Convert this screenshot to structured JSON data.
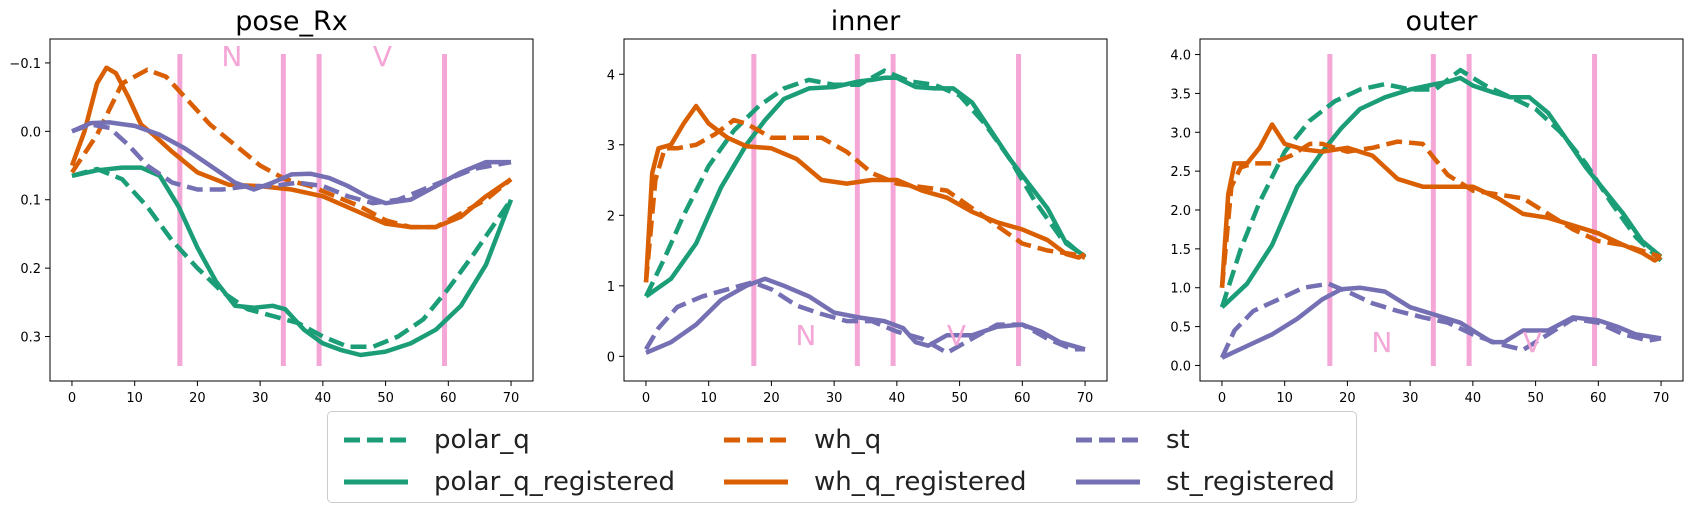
{
  "colors": {
    "polar": "#1b9e77",
    "wh": "#d95f02",
    "st": "#7570b3",
    "events": "#f4a6d7"
  },
  "legend": {
    "placement": "bottom-center",
    "entries": [
      {
        "label": "polar_q",
        "series": "polar_q",
        "style": "dashed"
      },
      {
        "label": "wh_q",
        "series": "wh_q",
        "style": "dashed"
      },
      {
        "label": "st",
        "series": "st",
        "style": "dashed"
      },
      {
        "label": "polar_q_registered",
        "series": "polar_q_registered",
        "style": "solid"
      },
      {
        "label": "wh_q_registered",
        "series": "wh_q_registered",
        "style": "solid"
      },
      {
        "label": "st_registered",
        "series": "st_registered",
        "style": "solid"
      }
    ]
  },
  "chart_data": [
    {
      "type": "line",
      "title": "pose_Rx",
      "xlabel": "",
      "ylabel": "",
      "xlim": [
        -3.5,
        73.5
      ],
      "ylim": [
        0.365,
        -0.135
      ],
      "y_inverted": true,
      "xticks": [
        0,
        10,
        20,
        30,
        40,
        50,
        60,
        70
      ],
      "yticks": [
        -0.1,
        0.0,
        0.1,
        0.2,
        0.3
      ],
      "ytick_labels": [
        "−0.1",
        "0.0",
        "0.1",
        "0.2",
        "0.3"
      ],
      "grid": false,
      "event_lines": [
        17.2,
        33.7,
        39.4,
        59.4
      ],
      "event_labels": [
        {
          "text": "N",
          "x": 25.5,
          "y": -0.11
        },
        {
          "text": "V",
          "x": 49.5,
          "y": -0.11
        }
      ],
      "series": [
        {
          "name": "polar_q",
          "color": "polar",
          "dashed": true,
          "x": [
            0,
            4,
            8,
            12,
            16,
            20,
            24,
            28,
            32,
            36,
            40,
            44,
            48,
            52,
            56,
            60,
            64,
            70
          ],
          "y": [
            0.065,
            0.055,
            0.07,
            0.11,
            0.16,
            0.2,
            0.235,
            0.26,
            0.27,
            0.28,
            0.3,
            0.315,
            0.315,
            0.3,
            0.275,
            0.23,
            0.18,
            0.1
          ]
        },
        {
          "name": "polar_q_registered",
          "color": "polar",
          "dashed": false,
          "x": [
            0,
            4,
            8,
            11,
            14,
            17,
            20,
            23,
            26,
            29,
            32,
            34,
            37,
            40,
            43,
            46,
            50,
            54,
            58,
            62,
            66,
            70
          ],
          "y": [
            0.065,
            0.057,
            0.053,
            0.053,
            0.065,
            0.11,
            0.17,
            0.22,
            0.255,
            0.258,
            0.255,
            0.26,
            0.29,
            0.31,
            0.32,
            0.327,
            0.322,
            0.31,
            0.29,
            0.255,
            0.195,
            0.1
          ]
        },
        {
          "name": "wh_q",
          "color": "wh",
          "dashed": true,
          "x": [
            0,
            4,
            8,
            12,
            15,
            18,
            22,
            26,
            30,
            34,
            38,
            42,
            46,
            50,
            54,
            58,
            62,
            66,
            70
          ],
          "y": [
            0.06,
            0.005,
            -0.07,
            -0.09,
            -0.08,
            -0.05,
            -0.01,
            0.02,
            0.05,
            0.07,
            0.08,
            0.095,
            0.11,
            0.13,
            0.14,
            0.14,
            0.12,
            0.1,
            0.07
          ]
        },
        {
          "name": "wh_q_registered",
          "color": "wh",
          "dashed": false,
          "x": [
            0,
            2,
            4,
            5.5,
            7,
            9,
            11,
            13,
            16,
            20,
            25,
            30,
            35,
            40,
            45,
            50,
            54,
            58,
            62,
            66,
            70
          ],
          "y": [
            0.05,
            0.0,
            -0.07,
            -0.093,
            -0.085,
            -0.05,
            -0.01,
            0.005,
            0.03,
            0.06,
            0.078,
            0.08,
            0.085,
            0.095,
            0.115,
            0.135,
            0.14,
            0.14,
            0.125,
            0.095,
            0.07
          ]
        },
        {
          "name": "st",
          "color": "st",
          "dashed": true,
          "x": [
            0,
            3,
            6,
            9,
            12,
            16,
            20,
            24,
            28,
            32,
            36,
            40,
            44,
            48,
            52,
            56,
            60,
            64,
            70
          ],
          "y": [
            0.0,
            -0.01,
            -0.005,
            0.02,
            0.05,
            0.075,
            0.085,
            0.085,
            0.08,
            0.08,
            0.075,
            0.08,
            0.095,
            0.105,
            0.1,
            0.085,
            0.07,
            0.055,
            0.045
          ]
        },
        {
          "name": "st_registered",
          "color": "st",
          "dashed": false,
          "x": [
            0,
            3,
            6,
            10,
            14,
            18,
            22,
            26,
            29,
            32,
            35,
            38,
            41,
            44,
            47,
            50,
            54,
            58,
            62,
            66,
            70
          ],
          "y": [
            0.0,
            -0.012,
            -0.013,
            -0.008,
            0.005,
            0.025,
            0.05,
            0.075,
            0.085,
            0.075,
            0.063,
            0.062,
            0.068,
            0.08,
            0.095,
            0.105,
            0.1,
            0.08,
            0.06,
            0.045,
            0.045
          ]
        }
      ]
    },
    {
      "type": "line",
      "title": "inner",
      "xlabel": "",
      "ylabel": "",
      "xlim": [
        -3.5,
        73.5
      ],
      "ylim": [
        -0.35,
        4.5
      ],
      "y_inverted": false,
      "xticks": [
        0,
        10,
        20,
        30,
        40,
        50,
        60,
        70
      ],
      "yticks": [
        0,
        1,
        2,
        3,
        4
      ],
      "ytick_labels": [
        "0",
        "1",
        "2",
        "3",
        "4"
      ],
      "grid": false,
      "event_lines": [
        17.2,
        33.7,
        39.4,
        59.4
      ],
      "event_labels": [
        {
          "text": "N",
          "x": 25.5,
          "y": 0.3
        },
        {
          "text": "V",
          "x": 49.5,
          "y": 0.3
        }
      ],
      "series": [
        {
          "name": "polar_q",
          "color": "polar",
          "dashed": true,
          "x": [
            0,
            3,
            6,
            10,
            14,
            18,
            22,
            26,
            30,
            34,
            38,
            42,
            46,
            50,
            54,
            58,
            62,
            66,
            70
          ],
          "y": [
            0.85,
            1.4,
            2.0,
            2.7,
            3.2,
            3.55,
            3.8,
            3.92,
            3.85,
            3.85,
            4.05,
            3.9,
            3.85,
            3.7,
            3.3,
            2.8,
            2.2,
            1.7,
            1.4
          ]
        },
        {
          "name": "polar_q_registered",
          "color": "polar",
          "dashed": false,
          "x": [
            0,
            4,
            8,
            12,
            16,
            19,
            22,
            26,
            30,
            34,
            36,
            38,
            40,
            43,
            46,
            49,
            52,
            55,
            58,
            61,
            64,
            67,
            70
          ],
          "y": [
            0.85,
            1.1,
            1.6,
            2.4,
            3.0,
            3.35,
            3.65,
            3.8,
            3.82,
            3.9,
            3.92,
            3.95,
            3.95,
            3.82,
            3.8,
            3.8,
            3.6,
            3.2,
            2.8,
            2.45,
            2.1,
            1.6,
            1.42
          ]
        },
        {
          "name": "wh_q",
          "color": "wh",
          "dashed": true,
          "x": [
            0,
            1.5,
            3,
            5,
            8,
            11,
            14,
            16,
            20,
            24,
            28,
            32,
            36,
            40,
            44,
            48,
            52,
            56,
            60,
            64,
            68,
            70
          ],
          "y": [
            1.05,
            2.5,
            2.95,
            2.95,
            3.0,
            3.15,
            3.35,
            3.3,
            3.1,
            3.1,
            3.1,
            2.9,
            2.6,
            2.45,
            2.4,
            2.35,
            2.1,
            1.85,
            1.6,
            1.5,
            1.45,
            1.4
          ]
        },
        {
          "name": "wh_q_registered",
          "color": "wh",
          "dashed": false,
          "x": [
            0,
            1,
            2,
            4,
            6,
            8,
            10,
            13,
            16,
            20,
            24,
            28,
            32,
            36,
            40,
            44,
            48,
            52,
            56,
            60,
            64,
            67,
            69,
            70
          ],
          "y": [
            1.05,
            2.6,
            2.95,
            3.0,
            3.3,
            3.55,
            3.3,
            3.1,
            2.98,
            2.95,
            2.8,
            2.5,
            2.45,
            2.5,
            2.5,
            2.35,
            2.25,
            2.05,
            1.9,
            1.8,
            1.65,
            1.45,
            1.4,
            1.45
          ]
        },
        {
          "name": "st",
          "color": "st",
          "dashed": true,
          "x": [
            0,
            2,
            5,
            9,
            13,
            17,
            20,
            24,
            28,
            32,
            36,
            40,
            44,
            48,
            52,
            56,
            60,
            64,
            68,
            70
          ],
          "y": [
            0.1,
            0.4,
            0.7,
            0.85,
            0.95,
            1.05,
            0.95,
            0.72,
            0.6,
            0.5,
            0.5,
            0.35,
            0.25,
            0.05,
            0.25,
            0.45,
            0.45,
            0.25,
            0.1,
            0.1
          ]
        },
        {
          "name": "st_registered",
          "color": "st",
          "dashed": false,
          "x": [
            0,
            4,
            8,
            12,
            16,
            19,
            22,
            26,
            30,
            34,
            38,
            41,
            43,
            45,
            48,
            52,
            56,
            60,
            63,
            66,
            70
          ],
          "y": [
            0.05,
            0.2,
            0.45,
            0.8,
            1.0,
            1.1,
            1.0,
            0.85,
            0.62,
            0.55,
            0.5,
            0.4,
            0.2,
            0.15,
            0.3,
            0.3,
            0.42,
            0.45,
            0.35,
            0.2,
            0.1
          ]
        }
      ]
    },
    {
      "type": "line",
      "title": "outer",
      "xlabel": "",
      "ylabel": "",
      "xlim": [
        -3.5,
        73.5
      ],
      "ylim": [
        -0.2,
        4.2
      ],
      "y_inverted": false,
      "xticks": [
        0,
        10,
        20,
        30,
        40,
        50,
        60,
        70
      ],
      "yticks": [
        0.0,
        0.5,
        1.0,
        1.5,
        2.0,
        2.5,
        3.0,
        3.5,
        4.0
      ],
      "ytick_labels": [
        "0.0",
        "0.5",
        "1.0",
        "1.5",
        "2.0",
        "2.5",
        "3.0",
        "3.5",
        "4.0"
      ],
      "grid": false,
      "event_lines": [
        17.2,
        33.7,
        39.4,
        59.4
      ],
      "event_labels": [
        {
          "text": "N",
          "x": 25.5,
          "y": 0.3
        },
        {
          "text": "V",
          "x": 49.5,
          "y": 0.3
        }
      ],
      "series": [
        {
          "name": "polar_q",
          "color": "polar",
          "dashed": true,
          "x": [
            0,
            3,
            6,
            10,
            14,
            18,
            22,
            26,
            30,
            34,
            38,
            42,
            46,
            50,
            54,
            58,
            62,
            66,
            70
          ],
          "y": [
            0.75,
            1.5,
            2.1,
            2.75,
            3.15,
            3.4,
            3.55,
            3.62,
            3.55,
            3.55,
            3.8,
            3.6,
            3.45,
            3.3,
            3.0,
            2.6,
            2.1,
            1.65,
            1.35
          ]
        },
        {
          "name": "polar_q_registered",
          "color": "polar",
          "dashed": false,
          "x": [
            0,
            4,
            8,
            12,
            16,
            19,
            22,
            26,
            30,
            34,
            36,
            38,
            40,
            43,
            46,
            49,
            52,
            55,
            58,
            61,
            64,
            67,
            70
          ],
          "y": [
            0.75,
            1.05,
            1.55,
            2.3,
            2.75,
            3.05,
            3.3,
            3.45,
            3.55,
            3.62,
            3.65,
            3.7,
            3.6,
            3.52,
            3.45,
            3.45,
            3.25,
            2.9,
            2.55,
            2.25,
            1.95,
            1.6,
            1.4
          ]
        },
        {
          "name": "wh_q",
          "color": "wh",
          "dashed": true,
          "x": [
            0,
            1.5,
            3,
            5,
            8,
            11,
            14,
            16,
            20,
            24,
            28,
            32,
            36,
            40,
            44,
            48,
            52,
            56,
            60,
            64,
            68,
            70
          ],
          "y": [
            1.0,
            2.3,
            2.55,
            2.6,
            2.6,
            2.7,
            2.85,
            2.85,
            2.75,
            2.8,
            2.88,
            2.85,
            2.45,
            2.25,
            2.2,
            2.15,
            1.95,
            1.75,
            1.6,
            1.55,
            1.45,
            1.4
          ]
        },
        {
          "name": "wh_q_registered",
          "color": "wh",
          "dashed": false,
          "x": [
            0,
            1,
            2,
            4,
            6,
            8,
            10,
            13,
            16,
            20,
            24,
            28,
            32,
            36,
            40,
            44,
            48,
            52,
            56,
            60,
            64,
            67,
            69,
            70
          ],
          "y": [
            1.0,
            2.2,
            2.6,
            2.6,
            2.8,
            3.1,
            2.85,
            2.78,
            2.75,
            2.8,
            2.7,
            2.4,
            2.3,
            2.3,
            2.3,
            2.15,
            1.95,
            1.9,
            1.8,
            1.7,
            1.55,
            1.45,
            1.35,
            1.4
          ]
        },
        {
          "name": "st",
          "color": "st",
          "dashed": true,
          "x": [
            0,
            2,
            5,
            9,
            13,
            17,
            20,
            24,
            28,
            32,
            36,
            40,
            44,
            48,
            52,
            56,
            60,
            64,
            68,
            70
          ],
          "y": [
            0.1,
            0.45,
            0.7,
            0.85,
            1.0,
            1.05,
            0.95,
            0.8,
            0.7,
            0.62,
            0.55,
            0.4,
            0.28,
            0.2,
            0.4,
            0.6,
            0.55,
            0.4,
            0.32,
            0.35
          ]
        },
        {
          "name": "st_registered",
          "color": "st",
          "dashed": false,
          "x": [
            0,
            4,
            8,
            12,
            16,
            19,
            22,
            26,
            30,
            34,
            38,
            41,
            43,
            45,
            48,
            52,
            56,
            60,
            63,
            66,
            70
          ],
          "y": [
            0.1,
            0.25,
            0.4,
            0.6,
            0.85,
            0.98,
            1.0,
            0.95,
            0.75,
            0.65,
            0.55,
            0.4,
            0.3,
            0.3,
            0.45,
            0.45,
            0.62,
            0.58,
            0.5,
            0.4,
            0.35
          ]
        }
      ]
    }
  ]
}
